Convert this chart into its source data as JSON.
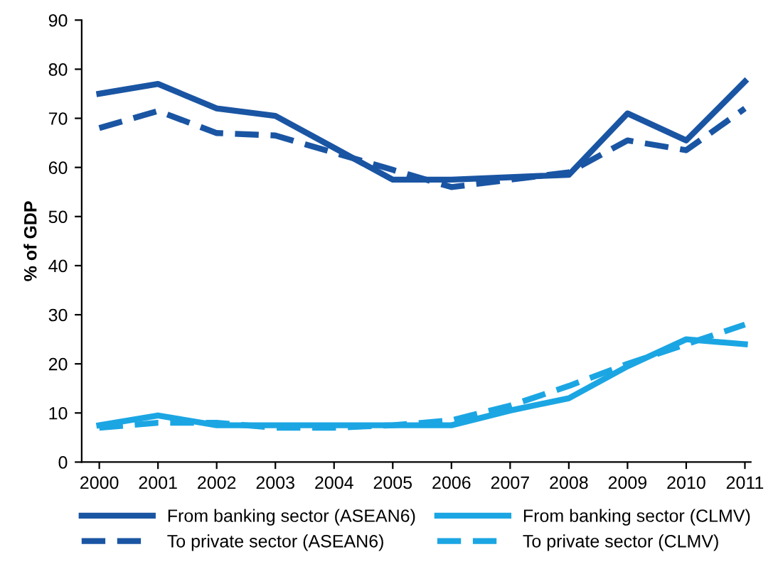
{
  "chart_data": {
    "type": "line",
    "ylabel": "% of GDP",
    "categories": [
      "2000",
      "2001",
      "2002",
      "2003",
      "2004",
      "2005",
      "2006",
      "2007",
      "2008",
      "2009",
      "2010",
      "2011"
    ],
    "series": [
      {
        "name": "From banking sector (ASEAN6)",
        "color": "#1a55a3",
        "line_style": "solid",
        "values": [
          75,
          77,
          72,
          70.5,
          64,
          57.5,
          57.5,
          58,
          58.5,
          71,
          65.5,
          77.5
        ]
      },
      {
        "name": "To private sector (ASEAN6)",
        "color": "#1a55a3",
        "line_style": "dashed",
        "values": [
          68,
          71.5,
          67,
          66.5,
          63,
          59.5,
          56,
          57.5,
          59,
          65.5,
          63.5,
          72
        ]
      },
      {
        "name": "From banking sector (CLMV)",
        "color": "#1ba6e3",
        "line_style": "solid",
        "values": [
          7.5,
          9.5,
          7.5,
          7.5,
          7.5,
          7.5,
          7.5,
          10.5,
          13,
          19.5,
          25,
          24
        ]
      },
      {
        "name": "To private sector (CLMV)",
        "color": "#1ba6e3",
        "line_style": "dashed",
        "values": [
          7,
          8,
          8,
          7,
          7,
          7.5,
          8.5,
          11.5,
          15.5,
          20,
          24,
          28
        ]
      }
    ],
    "ylim": [
      0,
      90
    ],
    "yticks": [
      0,
      10,
      20,
      30,
      40,
      50,
      60,
      70,
      80,
      90
    ],
    "grid": false,
    "legend": "bottom",
    "marker": "none"
  }
}
